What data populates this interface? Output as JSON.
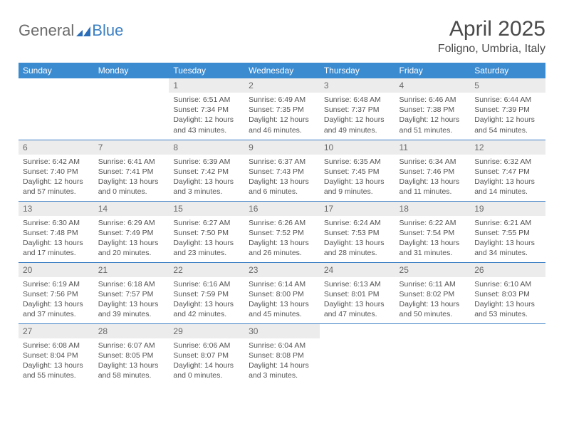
{
  "brand": {
    "general": "General",
    "blue": "Blue"
  },
  "title": "April 2025",
  "location": "Foligno, Umbria, Italy",
  "colors": {
    "header_bg": "#3b8bd1",
    "header_text": "#ffffff",
    "daynum_bg": "#ececec",
    "daynum_text": "#6a6a6a",
    "body_text": "#545454",
    "rule": "#3b7fc4",
    "brand_gray": "#6b6b6b",
    "brand_blue": "#3b7fc4"
  },
  "weekdays": [
    "Sunday",
    "Monday",
    "Tuesday",
    "Wednesday",
    "Thursday",
    "Friday",
    "Saturday"
  ],
  "weeks": [
    [
      null,
      null,
      {
        "n": "1",
        "sr": "6:51 AM",
        "ss": "7:34 PM",
        "dl": "12 hours and 43 minutes."
      },
      {
        "n": "2",
        "sr": "6:49 AM",
        "ss": "7:35 PM",
        "dl": "12 hours and 46 minutes."
      },
      {
        "n": "3",
        "sr": "6:48 AM",
        "ss": "7:37 PM",
        "dl": "12 hours and 49 minutes."
      },
      {
        "n": "4",
        "sr": "6:46 AM",
        "ss": "7:38 PM",
        "dl": "12 hours and 51 minutes."
      },
      {
        "n": "5",
        "sr": "6:44 AM",
        "ss": "7:39 PM",
        "dl": "12 hours and 54 minutes."
      }
    ],
    [
      {
        "n": "6",
        "sr": "6:42 AM",
        "ss": "7:40 PM",
        "dl": "12 hours and 57 minutes."
      },
      {
        "n": "7",
        "sr": "6:41 AM",
        "ss": "7:41 PM",
        "dl": "13 hours and 0 minutes."
      },
      {
        "n": "8",
        "sr": "6:39 AM",
        "ss": "7:42 PM",
        "dl": "13 hours and 3 minutes."
      },
      {
        "n": "9",
        "sr": "6:37 AM",
        "ss": "7:43 PM",
        "dl": "13 hours and 6 minutes."
      },
      {
        "n": "10",
        "sr": "6:35 AM",
        "ss": "7:45 PM",
        "dl": "13 hours and 9 minutes."
      },
      {
        "n": "11",
        "sr": "6:34 AM",
        "ss": "7:46 PM",
        "dl": "13 hours and 11 minutes."
      },
      {
        "n": "12",
        "sr": "6:32 AM",
        "ss": "7:47 PM",
        "dl": "13 hours and 14 minutes."
      }
    ],
    [
      {
        "n": "13",
        "sr": "6:30 AM",
        "ss": "7:48 PM",
        "dl": "13 hours and 17 minutes."
      },
      {
        "n": "14",
        "sr": "6:29 AM",
        "ss": "7:49 PM",
        "dl": "13 hours and 20 minutes."
      },
      {
        "n": "15",
        "sr": "6:27 AM",
        "ss": "7:50 PM",
        "dl": "13 hours and 23 minutes."
      },
      {
        "n": "16",
        "sr": "6:26 AM",
        "ss": "7:52 PM",
        "dl": "13 hours and 26 minutes."
      },
      {
        "n": "17",
        "sr": "6:24 AM",
        "ss": "7:53 PM",
        "dl": "13 hours and 28 minutes."
      },
      {
        "n": "18",
        "sr": "6:22 AM",
        "ss": "7:54 PM",
        "dl": "13 hours and 31 minutes."
      },
      {
        "n": "19",
        "sr": "6:21 AM",
        "ss": "7:55 PM",
        "dl": "13 hours and 34 minutes."
      }
    ],
    [
      {
        "n": "20",
        "sr": "6:19 AM",
        "ss": "7:56 PM",
        "dl": "13 hours and 37 minutes."
      },
      {
        "n": "21",
        "sr": "6:18 AM",
        "ss": "7:57 PM",
        "dl": "13 hours and 39 minutes."
      },
      {
        "n": "22",
        "sr": "6:16 AM",
        "ss": "7:59 PM",
        "dl": "13 hours and 42 minutes."
      },
      {
        "n": "23",
        "sr": "6:14 AM",
        "ss": "8:00 PM",
        "dl": "13 hours and 45 minutes."
      },
      {
        "n": "24",
        "sr": "6:13 AM",
        "ss": "8:01 PM",
        "dl": "13 hours and 47 minutes."
      },
      {
        "n": "25",
        "sr": "6:11 AM",
        "ss": "8:02 PM",
        "dl": "13 hours and 50 minutes."
      },
      {
        "n": "26",
        "sr": "6:10 AM",
        "ss": "8:03 PM",
        "dl": "13 hours and 53 minutes."
      }
    ],
    [
      {
        "n": "27",
        "sr": "6:08 AM",
        "ss": "8:04 PM",
        "dl": "13 hours and 55 minutes."
      },
      {
        "n": "28",
        "sr": "6:07 AM",
        "ss": "8:05 PM",
        "dl": "13 hours and 58 minutes."
      },
      {
        "n": "29",
        "sr": "6:06 AM",
        "ss": "8:07 PM",
        "dl": "14 hours and 0 minutes."
      },
      {
        "n": "30",
        "sr": "6:04 AM",
        "ss": "8:08 PM",
        "dl": "14 hours and 3 minutes."
      },
      null,
      null,
      null
    ]
  ],
  "labels": {
    "sunrise": "Sunrise:",
    "sunset": "Sunset:",
    "daylight": "Daylight:"
  }
}
